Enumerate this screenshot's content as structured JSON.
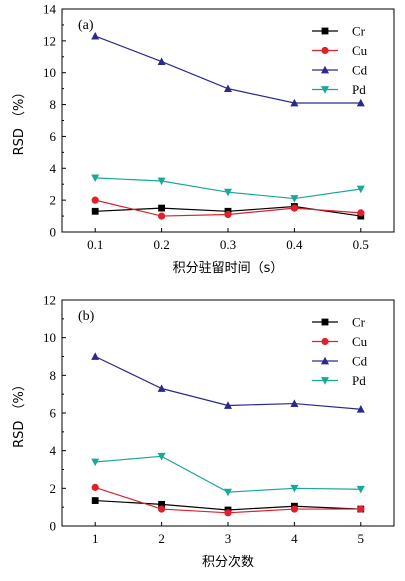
{
  "chart_data": [
    {
      "type": "line",
      "panel_label": "(a)",
      "xlabel": "积分驻留时间（s）",
      "ylabel": "RSD （%）",
      "x": [
        0.1,
        0.2,
        0.3,
        0.4,
        0.5
      ],
      "x_ticks": [
        "0.1",
        "0.2",
        "0.3",
        "0.4",
        "0.5"
      ],
      "xlim": [
        0.05,
        0.55
      ],
      "ylim": [
        0,
        14
      ],
      "y_ticks": [
        "0",
        "2",
        "4",
        "6",
        "8",
        "10",
        "12",
        "14"
      ],
      "legend_position": "top-right",
      "series": [
        {
          "name": "Cr",
          "color": "#000000",
          "marker": "square",
          "values": [
            1.3,
            1.5,
            1.3,
            1.6,
            1.0
          ]
        },
        {
          "name": "Cu",
          "color": "#e0202a",
          "marker": "circle",
          "values": [
            2.0,
            1.0,
            1.1,
            1.5,
            1.2
          ]
        },
        {
          "name": "Cd",
          "color": "#2b2a8c",
          "marker": "triangle-up",
          "values": [
            12.3,
            10.7,
            9.0,
            8.1,
            8.1
          ]
        },
        {
          "name": "Pd",
          "color": "#1aa898",
          "marker": "triangle-down",
          "values": [
            3.4,
            3.2,
            2.5,
            2.1,
            2.7
          ]
        }
      ]
    },
    {
      "type": "line",
      "panel_label": "(b)",
      "xlabel": "积分次数",
      "ylabel": "RSD （%）",
      "x": [
        1,
        2,
        3,
        4,
        5
      ],
      "x_ticks": [
        "1",
        "2",
        "3",
        "4",
        "5"
      ],
      "xlim": [
        0.5,
        5.5
      ],
      "ylim": [
        0,
        12
      ],
      "y_ticks": [
        "0",
        "2",
        "4",
        "6",
        "8",
        "10",
        "12"
      ],
      "legend_position": "top-right",
      "series": [
        {
          "name": "Cr",
          "color": "#000000",
          "marker": "square",
          "values": [
            1.35,
            1.15,
            0.85,
            1.05,
            0.9
          ]
        },
        {
          "name": "Cu",
          "color": "#e0202a",
          "marker": "circle",
          "values": [
            2.05,
            0.9,
            0.7,
            0.9,
            0.9
          ]
        },
        {
          "name": "Cd",
          "color": "#2b2a8c",
          "marker": "triangle-up",
          "values": [
            9.0,
            7.3,
            6.4,
            6.5,
            6.2
          ]
        },
        {
          "name": "Pd",
          "color": "#1aa898",
          "marker": "triangle-down",
          "values": [
            3.4,
            3.7,
            1.8,
            2.0,
            1.95
          ]
        }
      ]
    }
  ]
}
